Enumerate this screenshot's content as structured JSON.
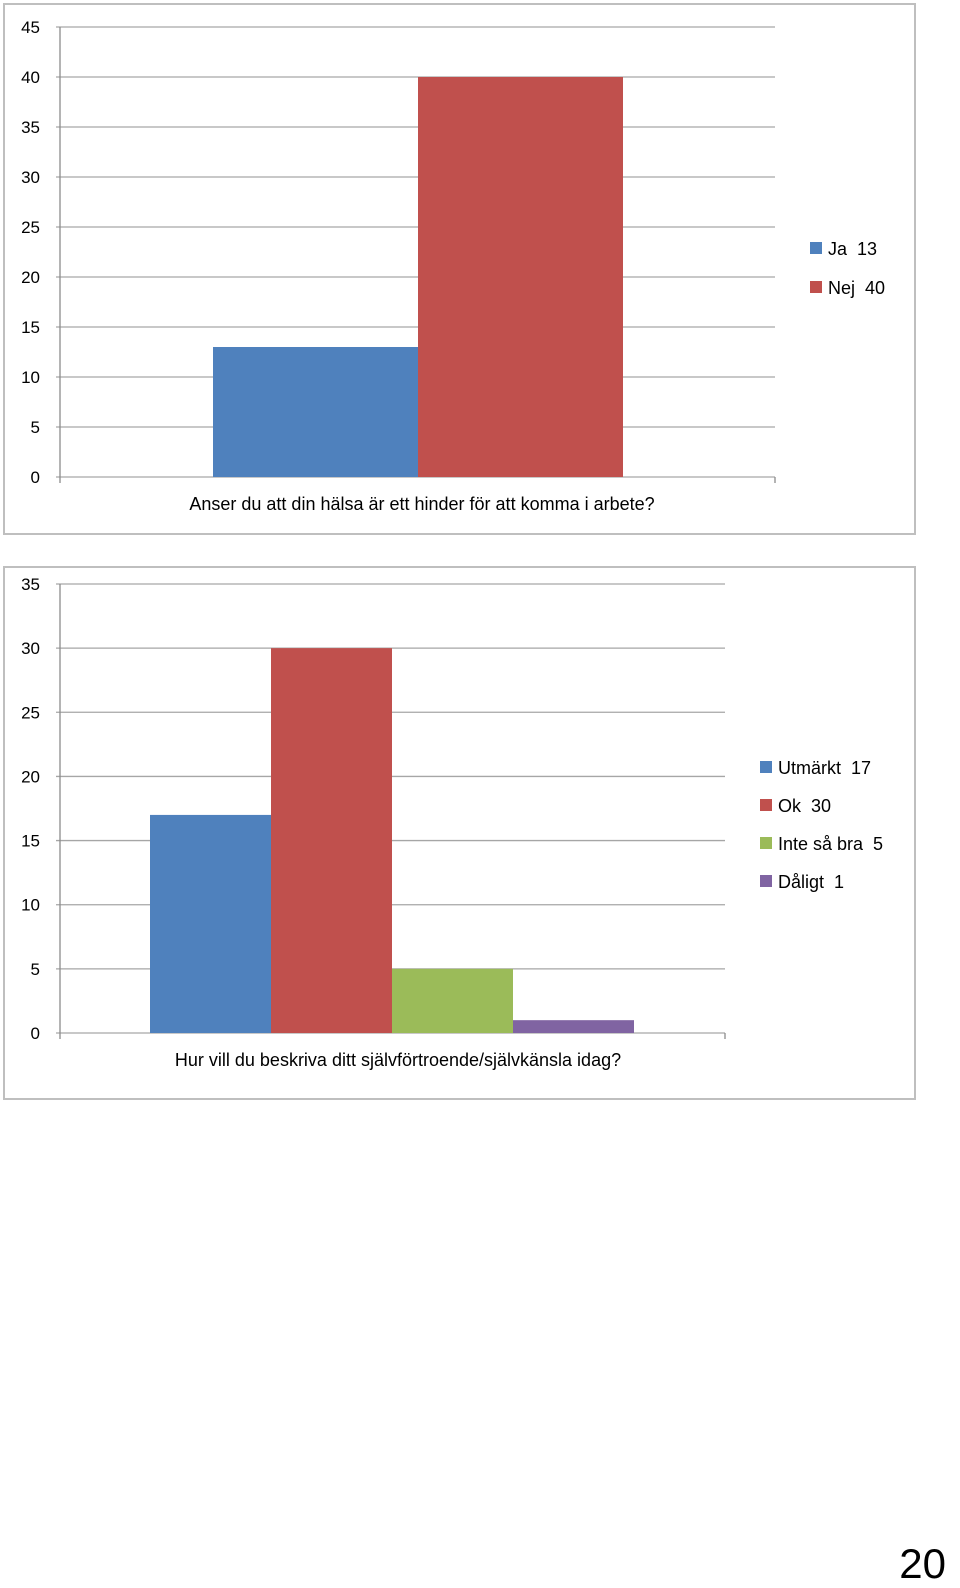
{
  "chart_data": [
    {
      "type": "bar",
      "title": "",
      "xlabel": "",
      "ylabel": "",
      "categories": [
        "Anser du att din hälsa är ett hinder för att komma i arbete?"
      ],
      "ylim": [
        0,
        45
      ],
      "yticks": [
        0,
        5,
        10,
        15,
        20,
        25,
        30,
        35,
        40,
        45
      ],
      "grid": true,
      "legend_position": "right",
      "series": [
        {
          "name": "Ja  13",
          "values": [
            13
          ],
          "color": "#4f81bd"
        },
        {
          "name": "Nej  40",
          "values": [
            40
          ],
          "color": "#c0504d"
        }
      ]
    },
    {
      "type": "bar",
      "title": "",
      "xlabel": "",
      "ylabel": "",
      "categories": [
        "Hur vill du beskriva ditt självförtroende/självkänsla idag?"
      ],
      "ylim": [
        0,
        35
      ],
      "yticks": [
        0,
        5,
        10,
        15,
        20,
        25,
        30,
        35
      ],
      "grid": true,
      "legend_position": "right",
      "series": [
        {
          "name": "Utmärkt  17",
          "values": [
            17
          ],
          "color": "#4f81bd"
        },
        {
          "name": "Ok  30",
          "values": [
            30
          ],
          "color": "#c0504d"
        },
        {
          "name": "Inte så bra  5",
          "values": [
            5
          ],
          "color": "#9bbb59"
        },
        {
          "name": "Dåligt  1",
          "values": [
            1
          ],
          "color": "#8064a2"
        }
      ]
    }
  ],
  "page_number": "20"
}
